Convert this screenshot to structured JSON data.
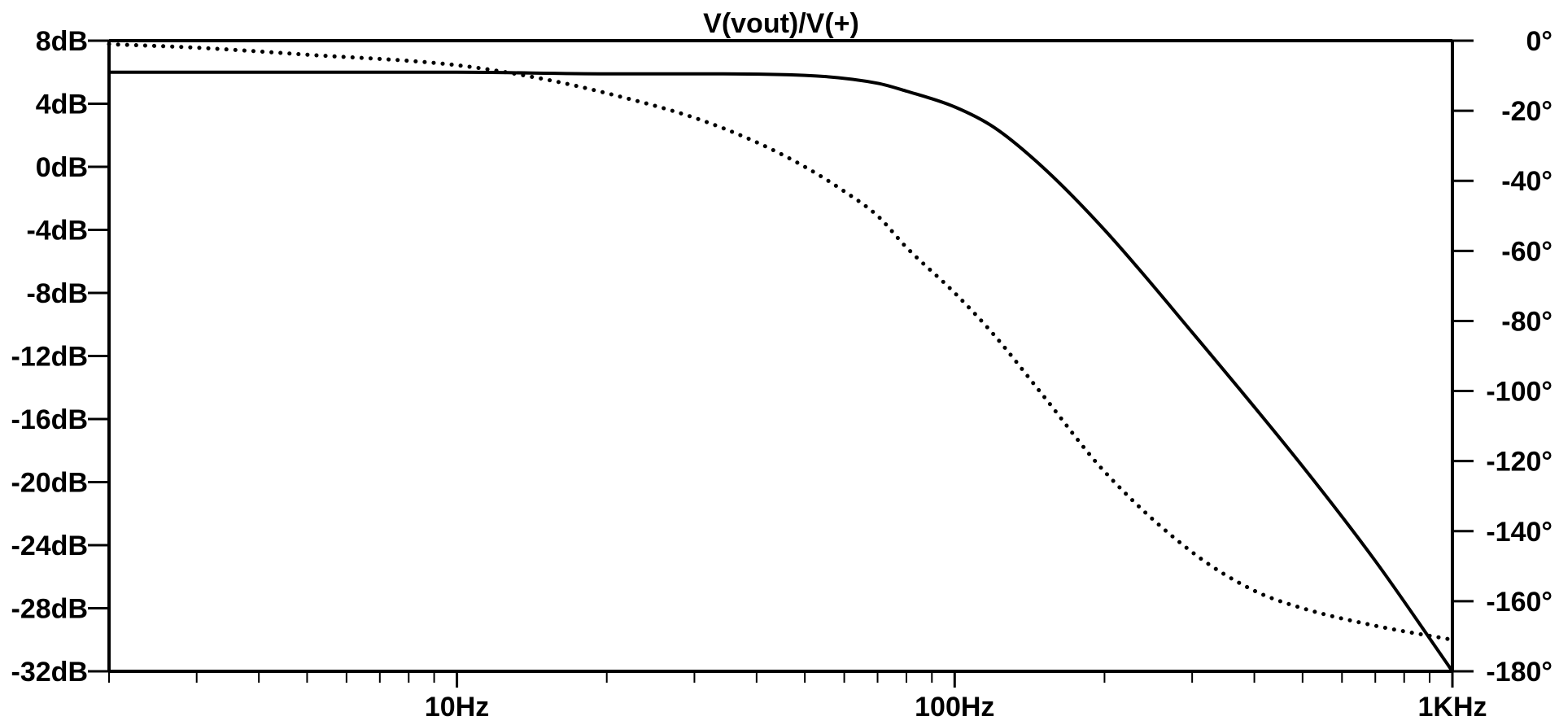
{
  "chart_data": {
    "type": "line",
    "title": "V(vout)/V(+)",
    "x_scale": "log",
    "xlim": [
      2,
      1000
    ],
    "x_tick_labels": [
      {
        "value": 10,
        "label": "10Hz"
      },
      {
        "value": 100,
        "label": "100Hz"
      },
      {
        "value": 1000,
        "label": "1KHz"
      }
    ],
    "y_left": {
      "unit": "dB",
      "ylim": [
        -32,
        8
      ],
      "tick_labels": [
        {
          "value": 8,
          "label": "8dB"
        },
        {
          "value": 4,
          "label": "4dB"
        },
        {
          "value": 0,
          "label": "0dB"
        },
        {
          "value": -4,
          "label": "-4dB"
        },
        {
          "value": -8,
          "label": "-8dB"
        },
        {
          "value": -12,
          "label": "-12dB"
        },
        {
          "value": -16,
          "label": "-16dB"
        },
        {
          "value": -20,
          "label": "-20dB"
        },
        {
          "value": -24,
          "label": "-24dB"
        },
        {
          "value": -28,
          "label": "-28dB"
        },
        {
          "value": -32,
          "label": "-32dB"
        }
      ]
    },
    "y_right": {
      "unit": "degrees",
      "ylim": [
        -180,
        0
      ],
      "tick_labels": [
        {
          "value": 0,
          "label": "0°"
        },
        {
          "value": -20,
          "label": "-20°"
        },
        {
          "value": -40,
          "label": "-40°"
        },
        {
          "value": -60,
          "label": "-60°"
        },
        {
          "value": -80,
          "label": "-80°"
        },
        {
          "value": -100,
          "label": "-100°"
        },
        {
          "value": -120,
          "label": "-120°"
        },
        {
          "value": -140,
          "label": "-140°"
        },
        {
          "value": -160,
          "label": "-160°"
        },
        {
          "value": -180,
          "label": "-180°"
        }
      ]
    },
    "grid": false,
    "series": [
      {
        "style": "solid",
        "axis": "left",
        "x": [
          2,
          5,
          10,
          20,
          30,
          50,
          70,
          80,
          100,
          120,
          150,
          200,
          300,
          500,
          700,
          1000
        ],
        "y": [
          6.0,
          6.0,
          6.0,
          5.9,
          5.9,
          5.8,
          5.3,
          4.8,
          3.8,
          2.5,
          0.0,
          -4.0,
          -10.5,
          -19.0,
          -25.0,
          -32.0
        ]
      },
      {
        "style": "dotted",
        "axis": "right",
        "x": [
          2,
          3,
          5,
          10,
          15,
          20,
          30,
          40,
          50,
          60,
          70,
          80,
          100,
          120,
          150,
          200,
          300,
          400,
          500,
          700,
          1000
        ],
        "y": [
          -1,
          -2,
          -4,
          -7,
          -11,
          -15,
          -22,
          -29,
          -36,
          -43,
          -50,
          -59,
          -72,
          -84,
          -101,
          -123,
          -146,
          -157,
          -162,
          -167,
          -171
        ]
      }
    ]
  }
}
